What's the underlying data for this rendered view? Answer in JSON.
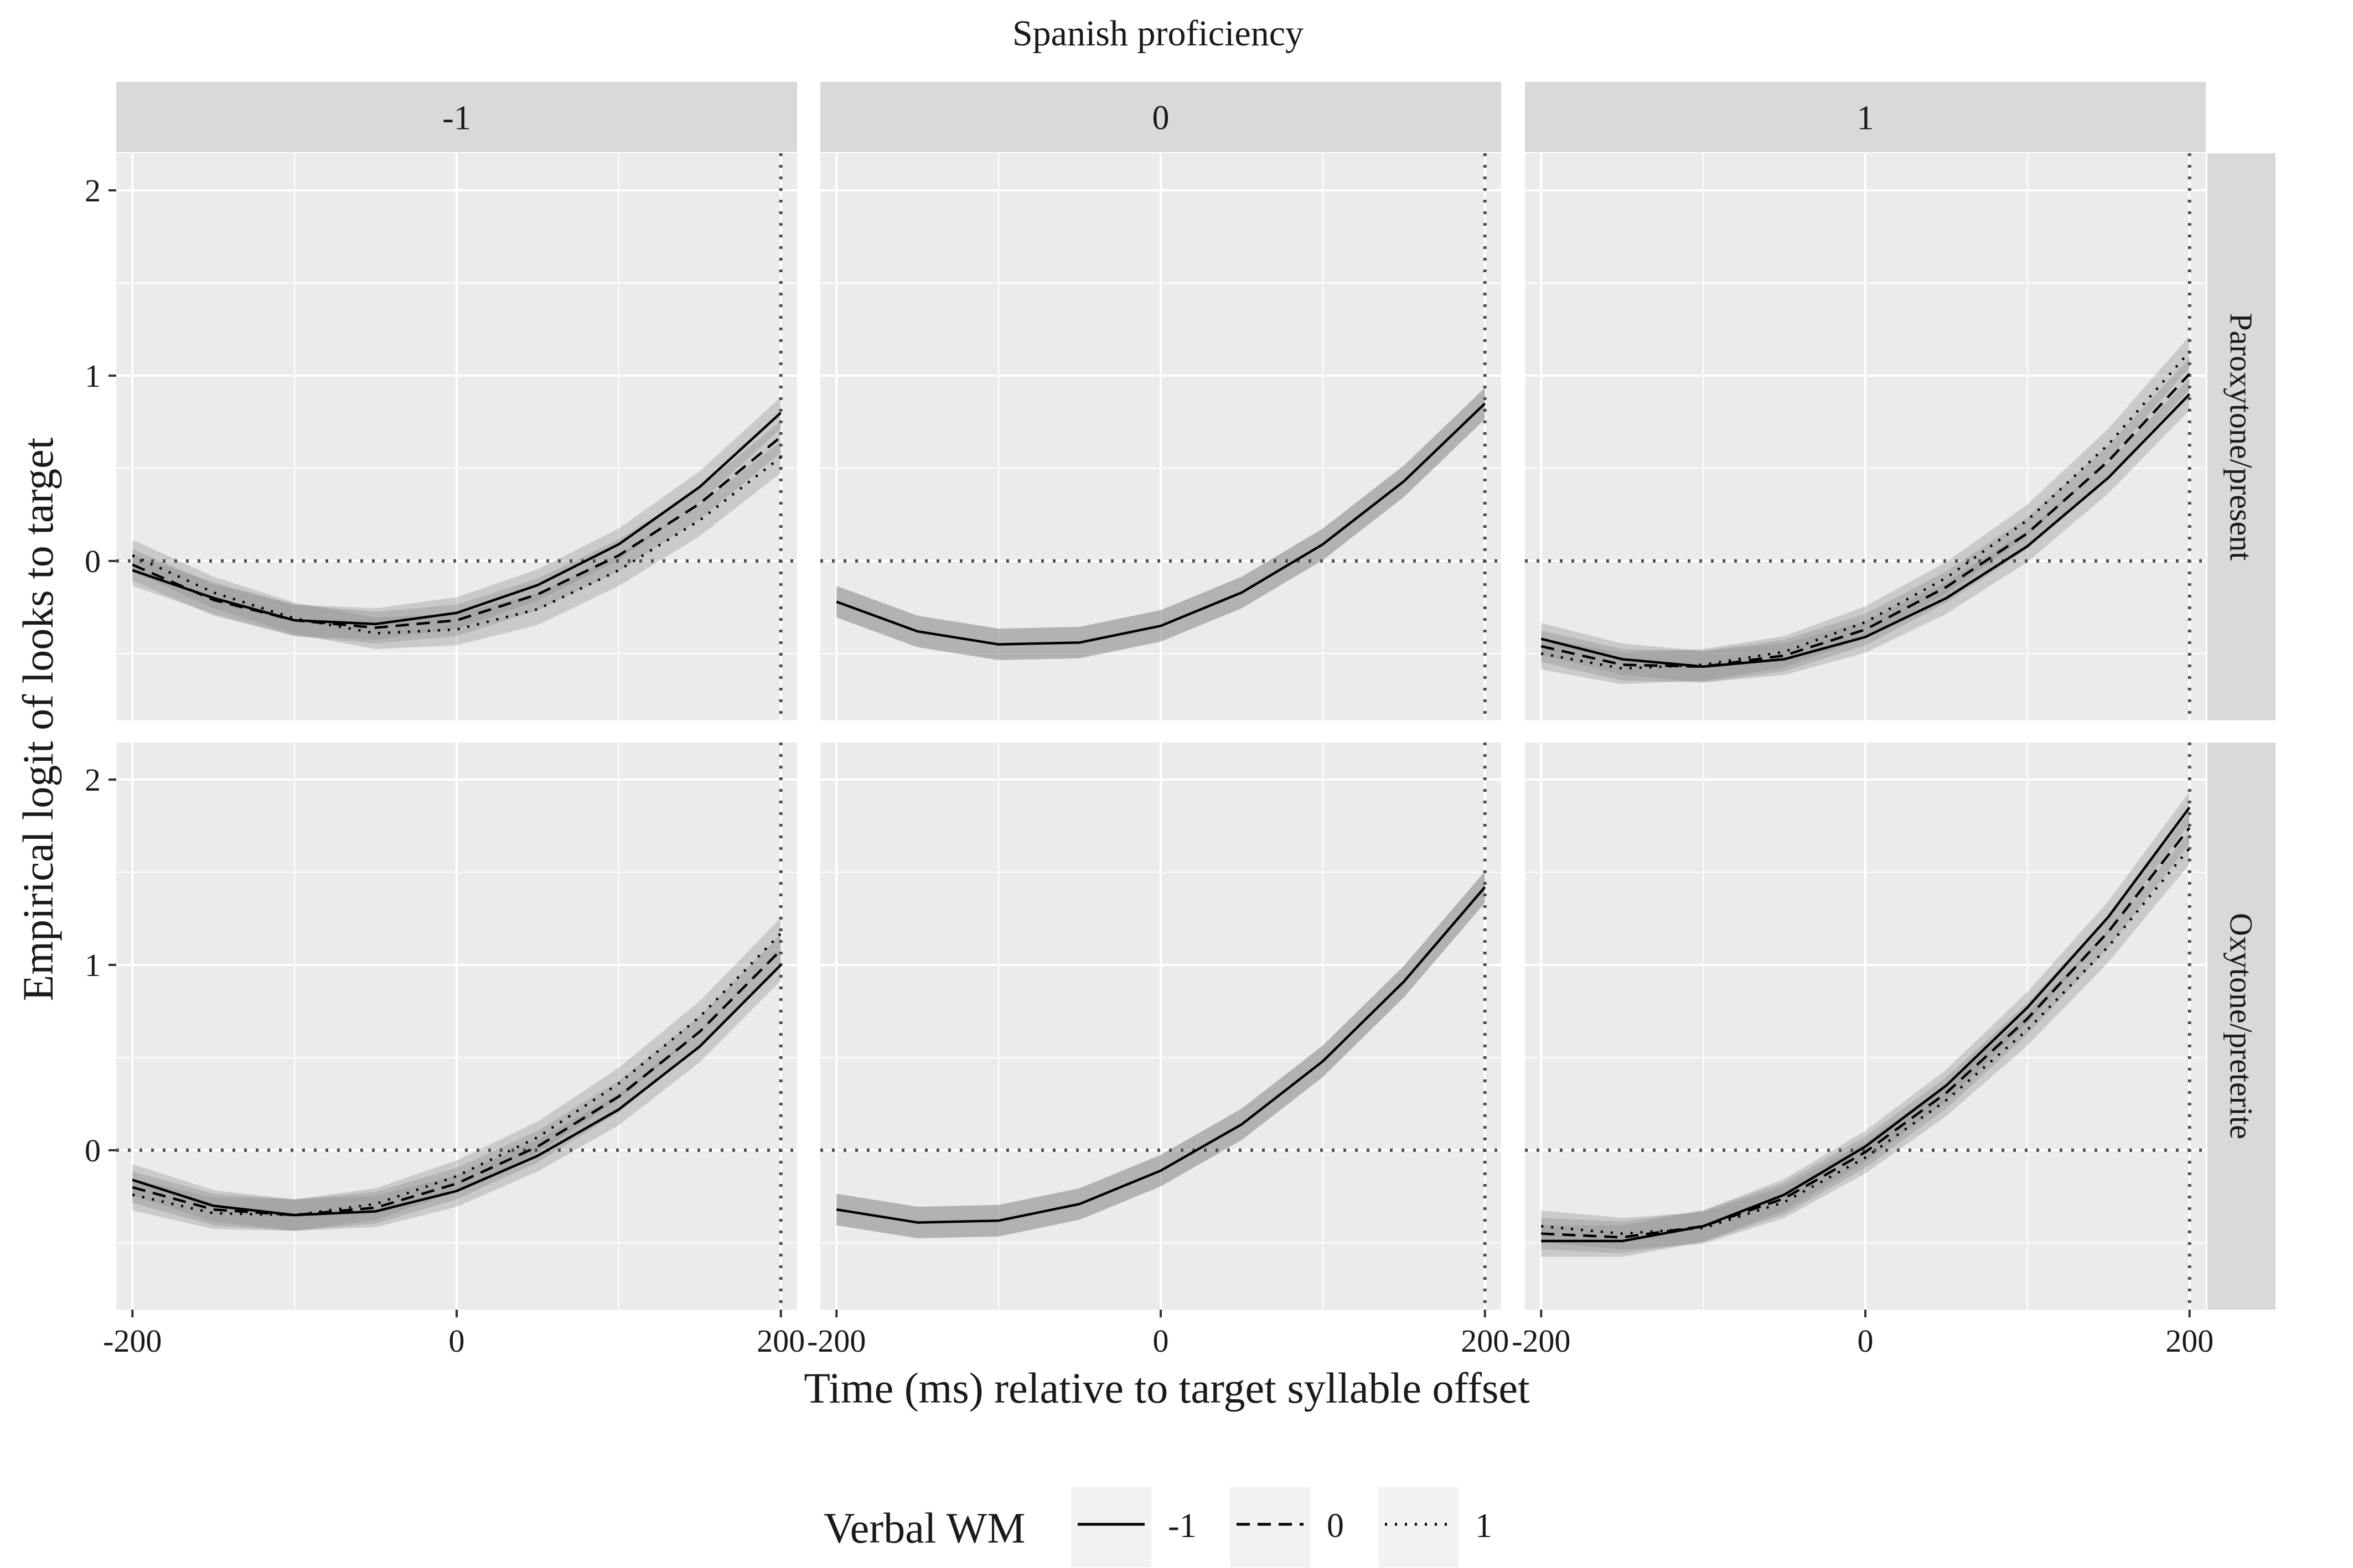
{
  "chart_data": {
    "type": "line",
    "title": "Spanish proficiency",
    "xlabel": "Time (ms) relative to target syllable offset",
    "ylabel": "Empirical logit of looks to target",
    "facet_cols": [
      "-1",
      "0",
      "1"
    ],
    "facet_rows": [
      "Paroxytone/present",
      "Oxytone/preterite"
    ],
    "x_ticks": [
      "-200",
      "0",
      "200"
    ],
    "y_ticks": [
      "0",
      "1",
      "2"
    ],
    "xlim": [
      -210,
      210
    ],
    "ylim": [
      -0.86,
      2.2
    ],
    "reference_lines": {
      "x": 200,
      "y": 0
    },
    "x": [
      -200,
      -150,
      -100,
      -50,
      0,
      50,
      100,
      150,
      200
    ],
    "legend": {
      "title": "Verbal WM",
      "position": "bottom",
      "entries": [
        {
          "label": "-1",
          "linetype": "solid"
        },
        {
          "label": "0",
          "linetype": "dashed"
        },
        {
          "label": "1",
          "linetype": "dotted"
        }
      ]
    },
    "panels": [
      {
        "col": "-1",
        "row": "Paroxytone/present",
        "series": [
          {
            "wm": "-1",
            "linetype": "solid",
            "values": [
              -0.05,
              -0.2,
              -0.32,
              -0.34,
              -0.28,
              -0.13,
              0.09,
              0.4,
              0.8
            ]
          },
          {
            "wm": "0",
            "linetype": "dashed",
            "values": [
              -0.02,
              -0.21,
              -0.32,
              -0.36,
              -0.32,
              -0.18,
              0.03,
              0.31,
              0.67
            ]
          },
          {
            "wm": "1",
            "linetype": "dotted",
            "values": [
              0.03,
              -0.17,
              -0.31,
              -0.39,
              -0.37,
              -0.26,
              -0.05,
              0.22,
              0.56
            ]
          }
        ]
      },
      {
        "col": "0",
        "row": "Paroxytone/present",
        "series": [
          {
            "wm": "-1",
            "linetype": "solid",
            "values": [
              -0.22,
              -0.38,
              -0.45,
              -0.44,
              -0.35,
              -0.17,
              0.09,
              0.43,
              0.85
            ]
          }
        ]
      },
      {
        "col": "1",
        "row": "Paroxytone/present",
        "series": [
          {
            "wm": "-1",
            "linetype": "solid",
            "values": [
              -0.42,
              -0.53,
              -0.57,
              -0.53,
              -0.41,
              -0.2,
              0.08,
              0.45,
              0.9
            ]
          },
          {
            "wm": "0",
            "linetype": "dashed",
            "values": [
              -0.46,
              -0.56,
              -0.57,
              -0.51,
              -0.37,
              -0.14,
              0.15,
              0.54,
              1.01
            ]
          },
          {
            "wm": "1",
            "linetype": "dotted",
            "values": [
              -0.5,
              -0.58,
              -0.56,
              -0.49,
              -0.33,
              -0.09,
              0.22,
              0.63,
              1.13
            ]
          }
        ]
      },
      {
        "col": "-1",
        "row": "Oxytone/preterite",
        "series": [
          {
            "wm": "-1",
            "linetype": "solid",
            "values": [
              -0.16,
              -0.3,
              -0.35,
              -0.33,
              -0.22,
              -0.03,
              0.22,
              0.56,
              1.0
            ]
          },
          {
            "wm": "0",
            "linetype": "dashed",
            "values": [
              -0.2,
              -0.32,
              -0.35,
              -0.31,
              -0.18,
              0.02,
              0.29,
              0.64,
              1.08
            ]
          },
          {
            "wm": "1",
            "linetype": "dotted",
            "values": [
              -0.24,
              -0.34,
              -0.35,
              -0.29,
              -0.14,
              0.07,
              0.36,
              0.72,
              1.17
            ]
          }
        ]
      },
      {
        "col": "0",
        "row": "Oxytone/preterite",
        "series": [
          {
            "wm": "-1",
            "linetype": "solid",
            "values": [
              -0.32,
              -0.39,
              -0.38,
              -0.29,
              -0.11,
              0.14,
              0.48,
              0.91,
              1.42
            ]
          }
        ]
      },
      {
        "col": "1",
        "row": "Oxytone/preterite",
        "series": [
          {
            "wm": "-1",
            "linetype": "solid",
            "values": [
              -0.49,
              -0.49,
              -0.41,
              -0.24,
              0.02,
              0.35,
              0.77,
              1.26,
              1.85
            ]
          },
          {
            "wm": "0",
            "linetype": "dashed",
            "values": [
              -0.45,
              -0.47,
              -0.41,
              -0.26,
              -0.01,
              0.31,
              0.71,
              1.18,
              1.74
            ]
          },
          {
            "wm": "1",
            "linetype": "dotted",
            "values": [
              -0.41,
              -0.45,
              -0.42,
              -0.28,
              -0.04,
              0.27,
              0.65,
              1.1,
              1.63
            ]
          }
        ]
      }
    ],
    "colors": {
      "panel_background": "#ebebeb",
      "grid": "#ffffff",
      "strip_background": "#d9d9d9",
      "ribbon": "#8c8c8c",
      "line": "#000000",
      "reference_line": "#4d4d4d"
    }
  }
}
